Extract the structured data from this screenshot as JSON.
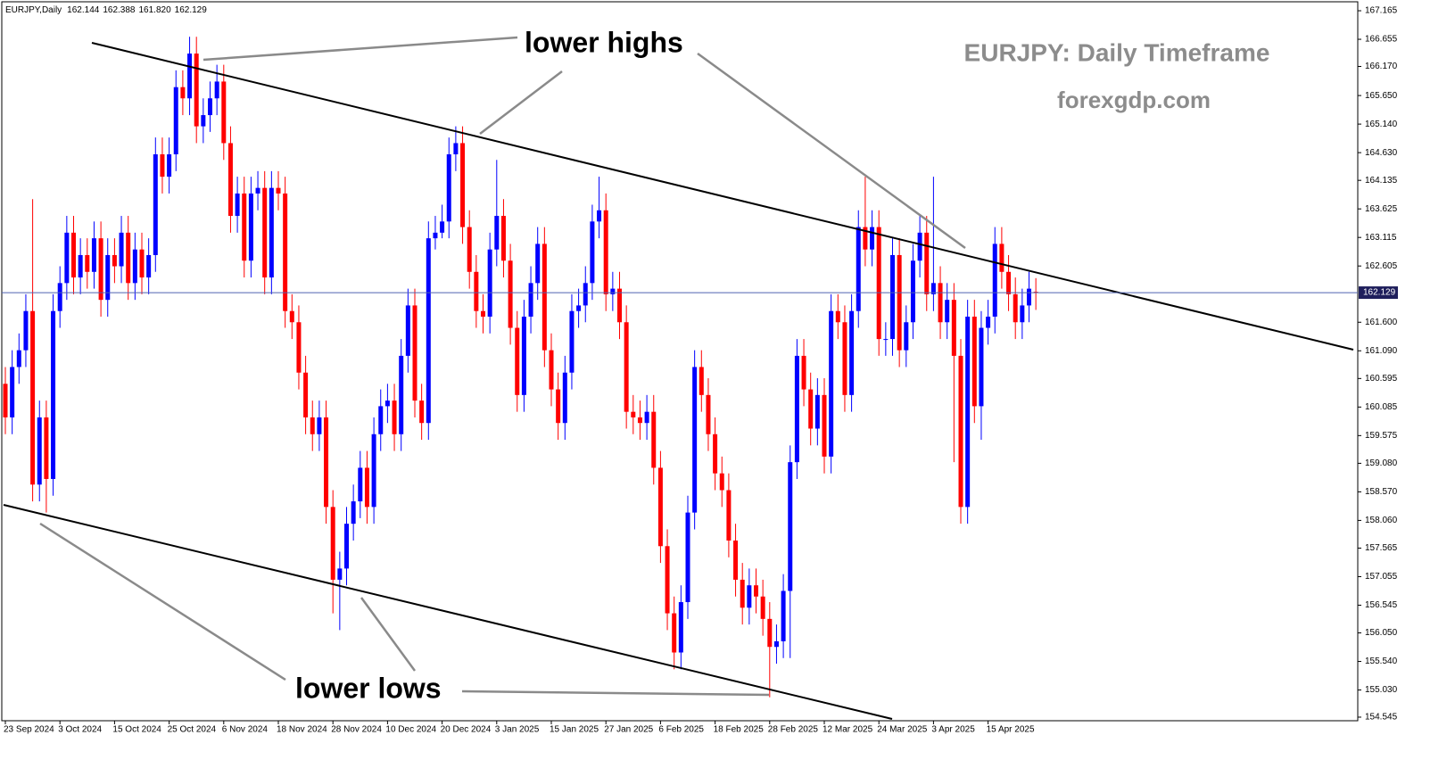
{
  "chart_data": {
    "type": "candlestick",
    "title": "EURJPY,Daily",
    "header_ohlc": [
      "162.144",
      "162.388",
      "161.820",
      "162.129"
    ],
    "watermark": [
      "EURJPY: Daily Timeframe",
      "forexgdp.com"
    ],
    "annotations": [
      "lower highs",
      "lower lows"
    ],
    "up_color": "#0000ff",
    "down_color": "#ff0000",
    "price_line_color": "#4f63b0",
    "ylim": [
      154.481,
      167.325
    ],
    "yticks": [
      167.165,
      166.655,
      {
        "value": 166.17,
        "label": "166.170"
      },
      {
        "value": 165.65,
        "label": "165.650"
      },
      {
        "value": 165.14,
        "label": "165.140"
      },
      {
        "value": 164.63,
        "label": "164.630"
      },
      164.135,
      163.625,
      163.115,
      162.605,
      {
        "value": 161.6,
        "label": "161.600"
      },
      {
        "value": 161.09,
        "label": "161.090"
      },
      160.595,
      160.085,
      159.575,
      {
        "value": 159.08,
        "label": "159.080"
      },
      {
        "value": 158.57,
        "label": "158.570"
      },
      {
        "value": 158.06,
        "label": "158.060"
      },
      157.565,
      157.055,
      156.545,
      {
        "value": 156.05,
        "label": "156.050"
      },
      {
        "value": 155.54,
        "label": "155.540"
      },
      {
        "value": 155.03,
        "label": "155.030"
      },
      154.545
    ],
    "categories": [
      "23 Sep 2024",
      null,
      null,
      null,
      null,
      null,
      null,
      null,
      "3 Oct 2024",
      null,
      null,
      null,
      null,
      null,
      null,
      null,
      "15 Oct 2024",
      null,
      null,
      null,
      null,
      null,
      null,
      null,
      "25 Oct 2024",
      null,
      null,
      null,
      null,
      null,
      null,
      null,
      "6 Nov 2024",
      null,
      null,
      null,
      null,
      null,
      null,
      null,
      "18 Nov 2024",
      null,
      null,
      null,
      null,
      null,
      null,
      null,
      "28 Nov 2024",
      null,
      null,
      null,
      null,
      null,
      null,
      null,
      "10 Dec 2024",
      null,
      null,
      null,
      null,
      null,
      null,
      null,
      "20 Dec 2024",
      null,
      null,
      null,
      null,
      null,
      null,
      null,
      "3 Jan 2025",
      null,
      null,
      null,
      null,
      null,
      null,
      null,
      "15 Jan 2025",
      null,
      null,
      null,
      null,
      null,
      null,
      null,
      "27 Jan 2025",
      null,
      null,
      null,
      null,
      null,
      null,
      null,
      "6 Feb 2025",
      null,
      null,
      null,
      null,
      null,
      null,
      null,
      "18 Feb 2025",
      null,
      null,
      null,
      null,
      null,
      null,
      null,
      "28 Feb 2025",
      null,
      null,
      null,
      null,
      null,
      null,
      null,
      "12 Mar 2025",
      null,
      null,
      null,
      null,
      null,
      null,
      null,
      "24 Mar 2025",
      null,
      null,
      null,
      null,
      null,
      null,
      null,
      "3 Apr 2025",
      null,
      null,
      null,
      null,
      null,
      null,
      null,
      "15 Apr 2025",
      null,
      null,
      null,
      null,
      null,
      null,
      null
    ],
    "open": [
      160.5,
      159.9,
      160.8,
      161.1,
      161.8,
      158.7,
      159.9,
      158.8,
      161.8,
      162.3,
      163.2,
      162.4,
      162.8,
      162.5,
      163.1,
      162.0,
      162.8,
      162.6,
      163.2,
      162.3,
      162.9,
      162.4,
      162.8,
      164.6,
      164.2,
      164.6,
      165.8,
      165.6,
      166.4,
      165.1,
      165.3,
      165.6,
      165.9,
      164.8,
      163.5,
      163.9,
      162.7,
      163.9,
      164.0,
      162.4,
      164.0,
      163.9,
      161.8,
      161.6,
      160.7,
      159.9,
      159.6,
      159.9,
      158.3,
      157.0,
      157.2,
      158.0,
      158.4,
      159.0,
      158.3,
      159.6,
      160.1,
      160.2,
      159.6,
      161.0,
      161.9,
      160.2,
      159.8,
      163.1,
      163.2,
      163.4,
      164.6,
      164.8,
      163.3,
      162.5,
      161.8,
      161.7,
      162.9,
      163.5,
      162.7,
      161.5,
      160.3,
      161.7,
      162.3,
      163.0,
      161.1,
      160.4,
      159.8,
      160.7,
      161.8,
      161.9,
      162.3,
      163.4,
      163.6,
      162.1,
      162.2,
      161.6,
      160.0,
      159.9,
      159.8,
      160.0,
      159.0,
      157.6,
      156.4,
      155.7,
      156.6,
      158.2,
      160.8,
      160.3,
      159.6,
      158.9,
      158.6,
      157.7,
      157.0,
      156.5,
      156.9,
      156.7,
      156.3,
      155.8,
      155.9,
      156.8,
      159.1,
      161.0,
      160.4,
      159.7,
      160.3,
      159.2,
      161.8,
      161.6,
      160.3,
      161.8,
      163.3,
      162.9,
      163.3,
      161.3,
      161.3,
      162.8,
      161.1,
      161.6,
      162.7,
      163.2,
      162.1,
      162.3,
      161.6,
      162.0,
      161.0,
      158.3,
      161.7,
      160.1,
      161.5,
      161.7,
      163.0,
      162.5,
      162.1,
      161.6,
      161.9,
      162.144
    ],
    "high": [
      160.8,
      161.1,
      161.4,
      162.1,
      163.8,
      160.2,
      160.2,
      162.1,
      162.6,
      163.5,
      163.5,
      163.1,
      163.1,
      163.4,
      163.4,
      163.1,
      163.1,
      163.5,
      163.5,
      163.2,
      163.2,
      163.1,
      164.9,
      164.9,
      164.9,
      166.1,
      166.1,
      166.7,
      166.7,
      165.6,
      165.9,
      166.2,
      166.2,
      165.1,
      164.2,
      164.2,
      164.2,
      164.3,
      164.3,
      164.3,
      164.3,
      164.2,
      162.1,
      161.9,
      161.0,
      160.2,
      160.2,
      160.2,
      158.6,
      157.5,
      158.3,
      158.7,
      159.3,
      159.3,
      159.9,
      160.4,
      160.5,
      160.5,
      161.3,
      162.2,
      162.2,
      160.5,
      163.4,
      163.5,
      163.7,
      164.9,
      165.1,
      165.1,
      163.6,
      162.8,
      162.1,
      163.2,
      164.5,
      163.8,
      163.0,
      161.8,
      162.0,
      162.6,
      163.3,
      163.3,
      161.4,
      160.7,
      161.0,
      162.1,
      162.2,
      162.6,
      163.7,
      164.2,
      163.9,
      162.5,
      162.5,
      161.9,
      160.3,
      160.2,
      160.3,
      160.3,
      159.3,
      157.9,
      156.7,
      156.9,
      158.5,
      161.1,
      161.1,
      160.6,
      159.9,
      159.2,
      158.9,
      158.0,
      157.3,
      157.2,
      157.2,
      157.0,
      156.6,
      156.2,
      157.1,
      159.4,
      161.3,
      161.3,
      160.7,
      160.6,
      160.6,
      162.1,
      162.1,
      161.9,
      162.1,
      163.6,
      164.2,
      163.6,
      163.6,
      161.6,
      163.1,
      163.1,
      161.9,
      163.0,
      163.5,
      163.5,
      164.2,
      162.6,
      162.3,
      162.3,
      161.3,
      162.0,
      162.0,
      161.8,
      162.0,
      163.3,
      163.3,
      162.8,
      162.4,
      162.2,
      162.5,
      162.388
    ],
    "low": [
      159.6,
      159.6,
      160.5,
      160.8,
      158.4,
      158.4,
      158.2,
      158.5,
      161.5,
      162.0,
      162.1,
      162.1,
      162.2,
      162.2,
      161.7,
      161.7,
      162.3,
      162.3,
      162.0,
      162.0,
      162.1,
      162.1,
      162.5,
      163.9,
      163.9,
      164.3,
      165.3,
      165.3,
      164.8,
      164.8,
      165.0,
      165.3,
      164.5,
      163.2,
      163.2,
      162.4,
      162.4,
      163.6,
      162.1,
      162.1,
      163.6,
      161.5,
      161.3,
      160.4,
      159.6,
      159.3,
      159.3,
      158.0,
      156.4,
      156.1,
      156.9,
      157.7,
      158.1,
      158.0,
      158.0,
      159.3,
      159.8,
      159.3,
      159.3,
      160.7,
      159.9,
      159.5,
      159.5,
      162.9,
      163.1,
      163.1,
      164.3,
      163.0,
      162.2,
      161.5,
      161.4,
      161.4,
      162.6,
      162.4,
      161.2,
      160.0,
      160.0,
      161.4,
      162.0,
      160.8,
      160.1,
      159.5,
      159.5,
      160.4,
      161.5,
      161.6,
      162.0,
      163.1,
      161.8,
      161.8,
      161.3,
      159.7,
      159.6,
      159.5,
      159.5,
      158.7,
      157.3,
      156.1,
      155.4,
      155.4,
      156.3,
      157.9,
      160.0,
      159.3,
      158.6,
      158.3,
      157.4,
      156.7,
      156.2,
      156.2,
      156.4,
      156.0,
      154.9,
      155.5,
      155.6,
      155.6,
      158.8,
      160.1,
      159.4,
      159.4,
      158.9,
      158.9,
      161.3,
      160.0,
      160.0,
      161.5,
      162.6,
      162.6,
      161.0,
      161.0,
      161.0,
      160.8,
      160.8,
      161.3,
      162.4,
      161.8,
      161.8,
      161.3,
      161.3,
      159.1,
      158.0,
      158.0,
      159.8,
      159.5,
      161.2,
      161.4,
      162.2,
      161.8,
      161.3,
      161.3,
      161.6,
      161.82
    ],
    "close": [
      159.9,
      160.8,
      161.1,
      161.8,
      158.7,
      159.9,
      158.8,
      161.8,
      162.3,
      163.2,
      162.4,
      162.8,
      162.5,
      163.1,
      162.0,
      162.8,
      162.6,
      163.2,
      162.3,
      162.9,
      162.4,
      162.8,
      164.6,
      164.2,
      164.6,
      165.8,
      165.6,
      166.4,
      165.1,
      165.3,
      165.6,
      165.9,
      164.8,
      163.5,
      163.9,
      162.7,
      163.9,
      164.0,
      162.4,
      164.0,
      163.9,
      161.8,
      161.6,
      160.7,
      159.9,
      159.6,
      159.9,
      158.3,
      157.0,
      157.2,
      158.0,
      158.4,
      159.0,
      158.3,
      159.6,
      160.1,
      160.2,
      159.6,
      161.0,
      161.9,
      160.2,
      159.8,
      163.1,
      163.2,
      163.4,
      164.6,
      164.8,
      163.3,
      162.5,
      161.8,
      161.7,
      162.9,
      163.5,
      162.7,
      161.5,
      160.3,
      161.7,
      162.3,
      163.0,
      161.1,
      160.4,
      159.8,
      160.7,
      161.8,
      161.9,
      162.3,
      163.4,
      163.6,
      162.1,
      162.2,
      161.6,
      160.0,
      159.9,
      159.8,
      160.0,
      159.0,
      157.6,
      156.4,
      155.7,
      156.6,
      158.2,
      160.8,
      160.3,
      159.6,
      158.9,
      158.6,
      157.7,
      157.0,
      156.5,
      156.9,
      156.7,
      156.3,
      155.8,
      155.9,
      156.8,
      159.1,
      161.0,
      160.4,
      159.7,
      160.3,
      159.2,
      161.8,
      161.6,
      160.3,
      161.8,
      163.3,
      162.9,
      163.3,
      161.3,
      161.3,
      162.8,
      161.1,
      161.6,
      162.7,
      163.2,
      162.1,
      162.3,
      161.6,
      162.0,
      161.0,
      158.3,
      161.7,
      160.1,
      161.5,
      161.7,
      163.0,
      162.5,
      162.1,
      161.6,
      161.9,
      162.2,
      162.129
    ]
  }
}
